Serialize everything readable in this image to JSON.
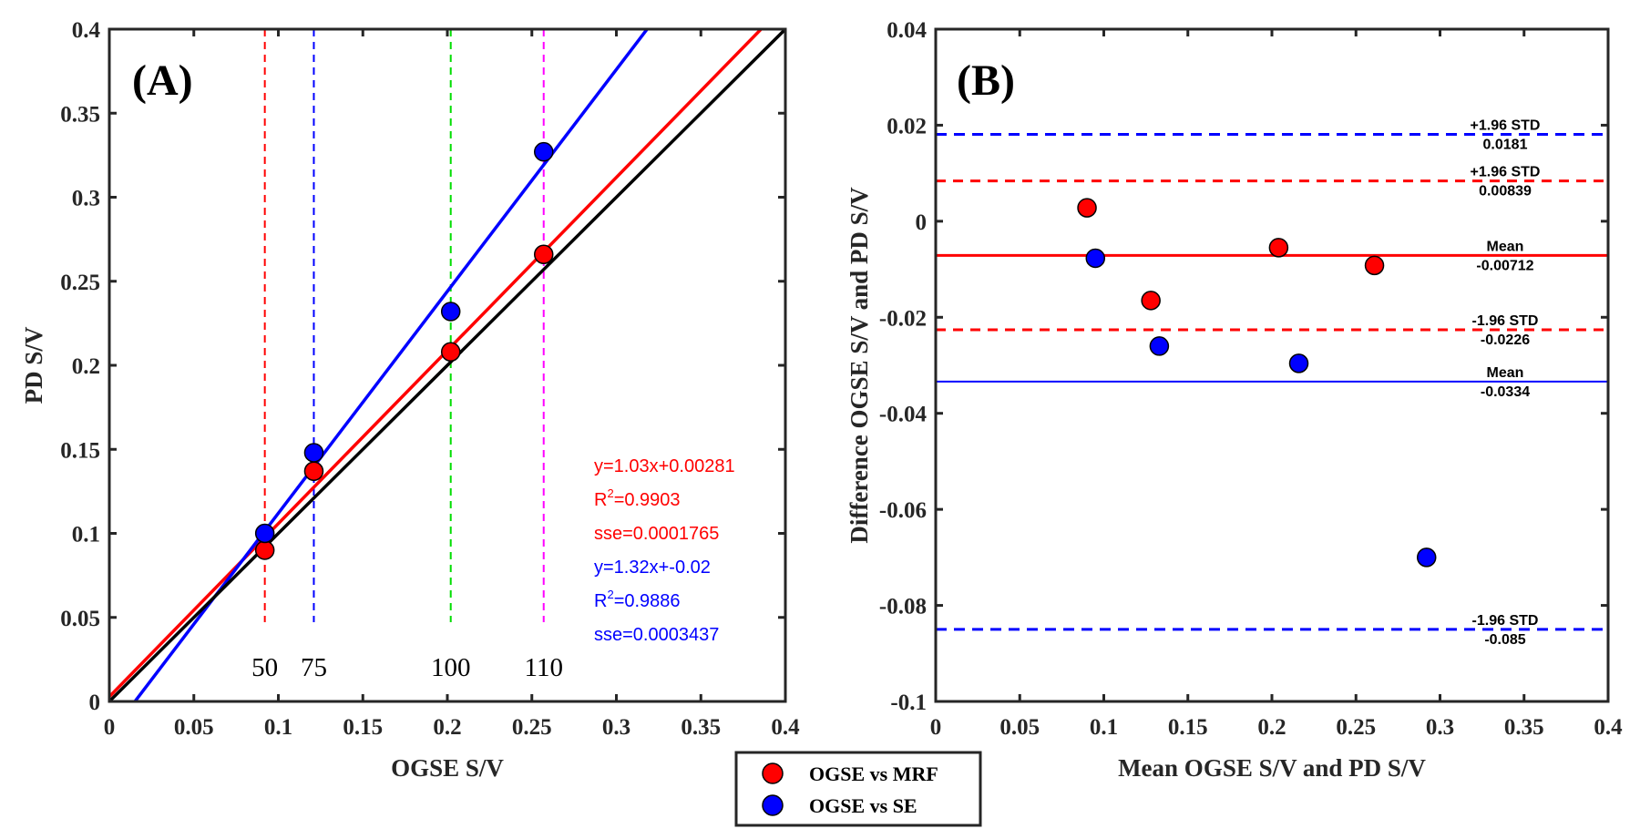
{
  "chart_data": [
    {
      "id": "A",
      "type": "scatter",
      "panel_label": "(A)",
      "xlabel": "OGSE S/V",
      "ylabel": "PD S/V",
      "xlim": [
        0,
        0.4
      ],
      "ylim": [
        0,
        0.4
      ],
      "xticks": [
        "0",
        "0.05",
        "0.1",
        "0.15",
        "0.2",
        "0.25",
        "0.3",
        "0.35",
        "0.4"
      ],
      "yticks": [
        "0",
        "0.05",
        "0.1",
        "0.15",
        "0.2",
        "0.25",
        "0.3",
        "0.35",
        "0.4"
      ],
      "series": [
        {
          "name": "OGSE vs MRF",
          "color": "#ff0000",
          "x": [
            0.092,
            0.121,
            0.202,
            0.257
          ],
          "y": [
            0.09,
            0.137,
            0.208,
            0.266
          ]
        },
        {
          "name": "OGSE vs SE",
          "color": "#0000ff",
          "x": [
            0.092,
            0.121,
            0.202,
            0.257
          ],
          "y": [
            0.1,
            0.148,
            0.232,
            0.327
          ]
        }
      ],
      "fit_lines": [
        {
          "name": "MRF fit",
          "color": "#ff0000",
          "slope": 1.03,
          "intercept": 0.00281
        },
        {
          "name": "SE fit",
          "color": "#0000ff",
          "slope": 1.32,
          "intercept": -0.02
        },
        {
          "name": "identity",
          "color": "#000000",
          "slope": 1.0,
          "intercept": 0.0
        }
      ],
      "vertical_markers": [
        {
          "x": 0.092,
          "label": "50",
          "color": "#ff0000"
        },
        {
          "x": 0.121,
          "label": "75",
          "color": "#0000ff"
        },
        {
          "x": 0.202,
          "label": "100",
          "color": "#00dd00"
        },
        {
          "x": 0.257,
          "label": "110",
          "color": "#ff00ff"
        }
      ],
      "annotations": [
        {
          "text": "y=1.03x+0.00281",
          "color": "#ff0000"
        },
        {
          "text": "R",
          "sup": "2",
          "rest": "=0.9903",
          "color": "#ff0000"
        },
        {
          "text": "sse=0.0001765",
          "color": "#ff0000"
        },
        {
          "text": "y=1.32x+-0.02",
          "color": "#0000ff"
        },
        {
          "text": "R",
          "sup": "2",
          "rest": "=0.9886",
          "color": "#0000ff"
        },
        {
          "text": "sse=0.0003437",
          "color": "#0000ff"
        }
      ]
    },
    {
      "id": "B",
      "type": "scatter",
      "panel_label": "(B)",
      "xlabel": "Mean OGSE S/V and PD S/V",
      "ylabel": "Difference OGSE S/V and PD S/V",
      "xlim": [
        0,
        0.4
      ],
      "ylim": [
        -0.1,
        0.04
      ],
      "xticks": [
        "0",
        "0.05",
        "0.1",
        "0.15",
        "0.2",
        "0.25",
        "0.3",
        "0.35",
        "0.4"
      ],
      "yticks": [
        "-0.1",
        "-0.08",
        "-0.06",
        "-0.04",
        "-0.02",
        "0",
        "0.02",
        "0.04"
      ],
      "series": [
        {
          "name": "OGSE vs MRF",
          "color": "#ff0000",
          "x": [
            0.09,
            0.128,
            0.204,
            0.261
          ],
          "y": [
            0.0028,
            -0.0165,
            -0.0055,
            -0.0092
          ]
        },
        {
          "name": "OGSE vs SE",
          "color": "#0000ff",
          "x": [
            0.095,
            0.133,
            0.216,
            0.292
          ],
          "y": [
            -0.0077,
            -0.026,
            -0.0296,
            -0.07
          ]
        }
      ],
      "reference_lines": [
        {
          "y": 0.0181,
          "style": "dashed",
          "color": "#0000ff",
          "label": "+1.96 STD",
          "value_label": "0.0181"
        },
        {
          "y": 0.00839,
          "style": "dashed",
          "color": "#ff0000",
          "label": "+1.96 STD",
          "value_label": "0.00839"
        },
        {
          "y": -0.00712,
          "style": "solid",
          "color": "#ff0000",
          "label": "Mean",
          "value_label": "-0.00712"
        },
        {
          "y": -0.0226,
          "style": "dashed",
          "color": "#ff0000",
          "label": "-1.96 STD",
          "value_label": "-0.0226"
        },
        {
          "y": -0.0334,
          "style": "solid",
          "color": "#0000ff",
          "label": "Mean",
          "value_label": "-0.0334"
        },
        {
          "y": -0.085,
          "style": "dashed",
          "color": "#0000ff",
          "label": "-1.96 STD",
          "value_label": "-0.085"
        }
      ]
    }
  ],
  "legend": {
    "placement": "bottom-center",
    "items": [
      {
        "label": "OGSE vs MRF",
        "color": "#ff0000"
      },
      {
        "label": "OGSE vs SE",
        "color": "#0000ff"
      }
    ]
  }
}
